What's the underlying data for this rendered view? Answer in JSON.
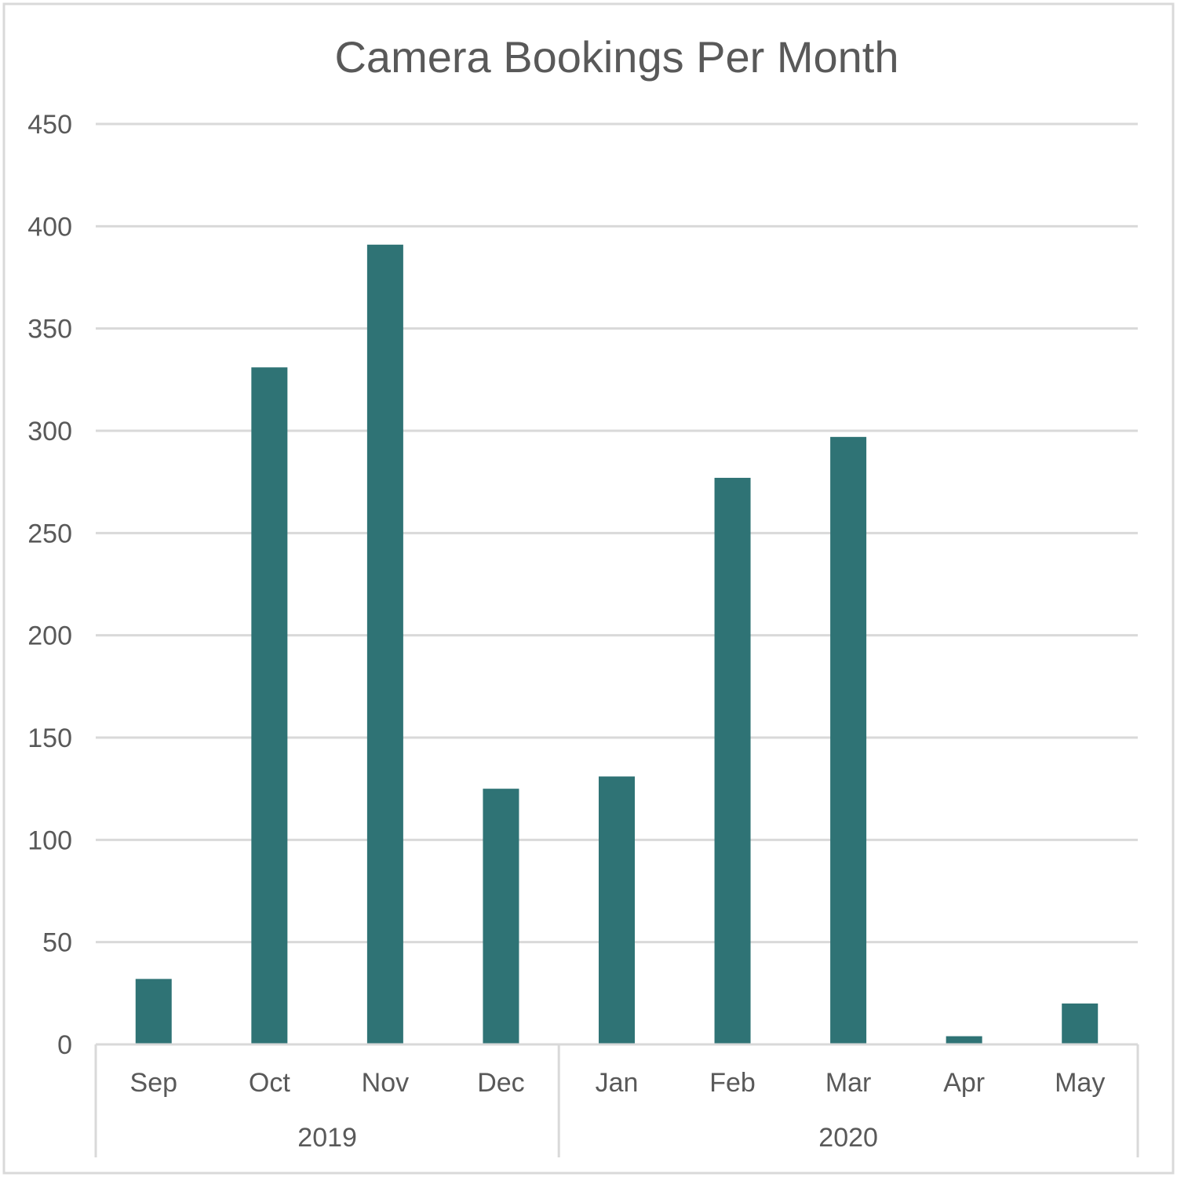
{
  "chart_data": {
    "type": "bar",
    "title": "Camera Bookings Per Month",
    "categories": [
      "Sep",
      "Oct",
      "Nov",
      "Dec",
      "Jan",
      "Feb",
      "Mar",
      "Apr",
      "May"
    ],
    "groups": [
      {
        "label": "2019",
        "categories": [
          "Sep",
          "Oct",
          "Nov",
          "Dec"
        ]
      },
      {
        "label": "2020",
        "categories": [
          "Jan",
          "Feb",
          "Mar",
          "Apr",
          "May"
        ]
      }
    ],
    "series": [
      {
        "values": [
          32,
          331,
          391,
          125,
          131,
          277,
          297,
          4,
          20
        ]
      }
    ],
    "ylim": [
      0,
      450
    ],
    "yticks": [
      "0",
      "50",
      "100",
      "150",
      "200",
      "250",
      "300",
      "350",
      "400",
      "450"
    ],
    "grid": true,
    "legend": "none",
    "colors": {
      "bar": "#2f7375",
      "grid": "#d9d9d9",
      "axis": "#d9d9d9",
      "text": "#595959",
      "frame": "#d9d9d9"
    }
  }
}
